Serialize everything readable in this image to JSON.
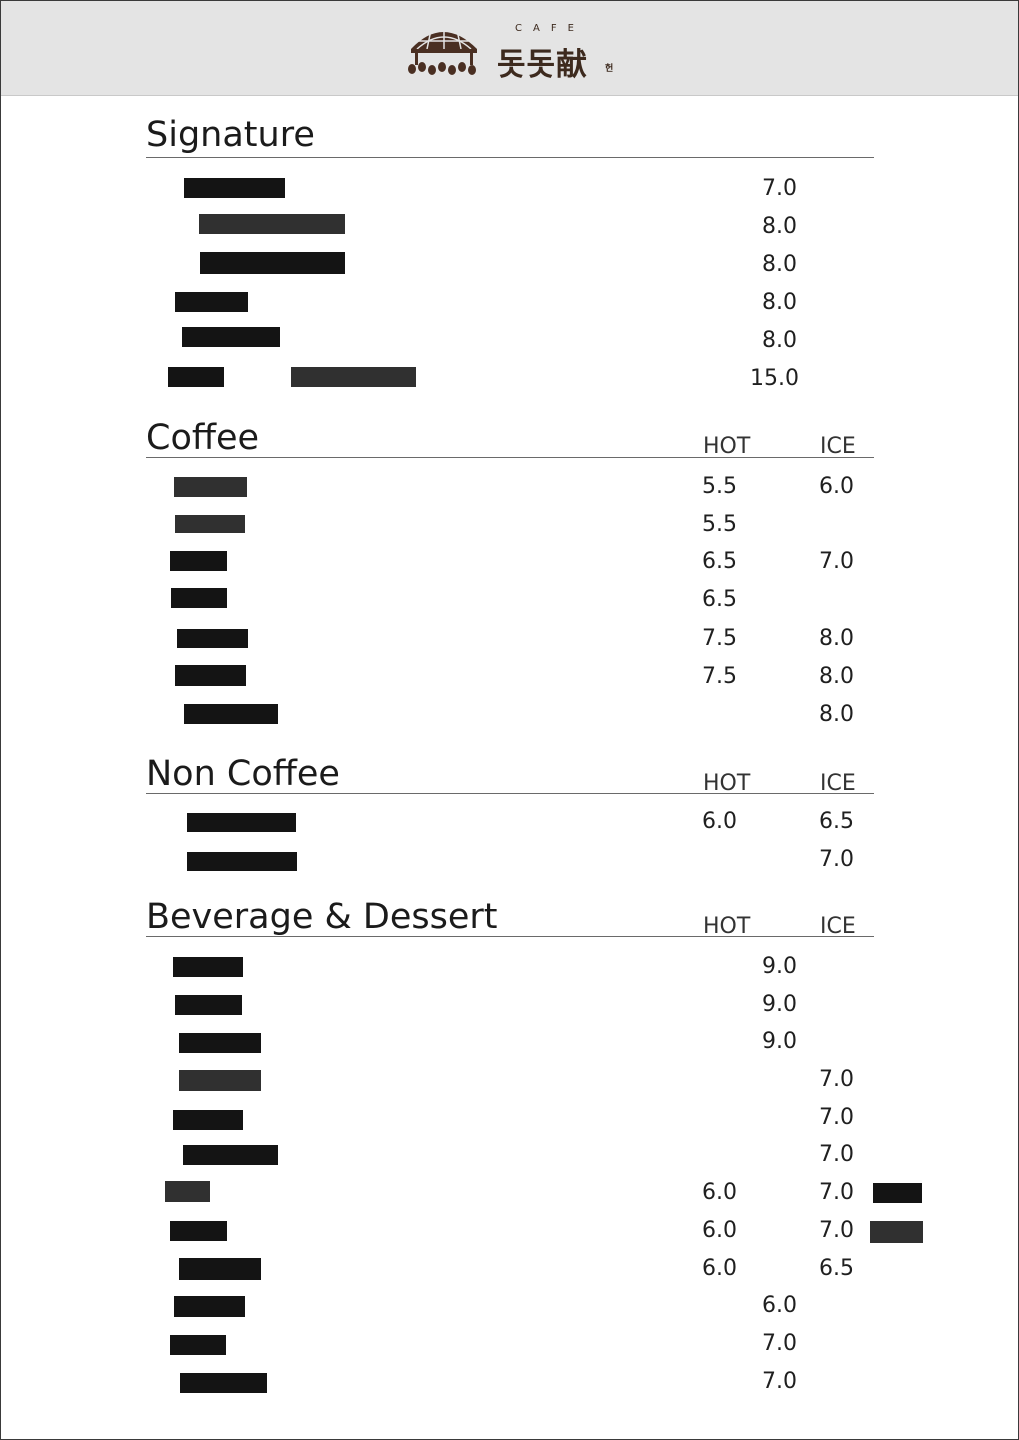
{
  "brand": {
    "cafe_word": "CAFE",
    "name": "돗돗献",
    "sub": "헌"
  },
  "columns": {
    "hot": "HOT",
    "ice": "ICE"
  },
  "sections": {
    "signature": {
      "title": "Signature",
      "prices": [
        "7.0",
        "8.0",
        "8.0",
        "8.0",
        "8.0",
        "15.0"
      ]
    },
    "coffee": {
      "title": "Coffee",
      "rows": [
        {
          "hot": "5.5",
          "ice": "6.0"
        },
        {
          "hot": "5.5",
          "ice": ""
        },
        {
          "hot": "6.5",
          "ice": "7.0"
        },
        {
          "hot": "6.5",
          "ice": ""
        },
        {
          "hot": "7.5",
          "ice": "8.0"
        },
        {
          "hot": "7.5",
          "ice": "8.0"
        },
        {
          "hot": "",
          "ice": "8.0"
        }
      ]
    },
    "non_coffee": {
      "title": "Non Coffee",
      "rows": [
        {
          "hot": "6.0",
          "ice": "6.5"
        },
        {
          "hot": "",
          "ice": "7.0"
        }
      ]
    },
    "beverage": {
      "title": "Beverage & Dessert",
      "rows": [
        {
          "mid": "9.0"
        },
        {
          "mid": "9.0"
        },
        {
          "mid": "9.0"
        },
        {
          "ice": "7.0"
        },
        {
          "ice": "7.0"
        },
        {
          "ice": "7.0"
        },
        {
          "hot": "6.0",
          "ice": "7.0"
        },
        {
          "hot": "6.0",
          "ice": "7.0"
        },
        {
          "hot": "6.0",
          "ice": "6.5"
        },
        {
          "mid": "6.0"
        },
        {
          "mid": "7.0"
        },
        {
          "mid": "7.0"
        }
      ]
    }
  }
}
